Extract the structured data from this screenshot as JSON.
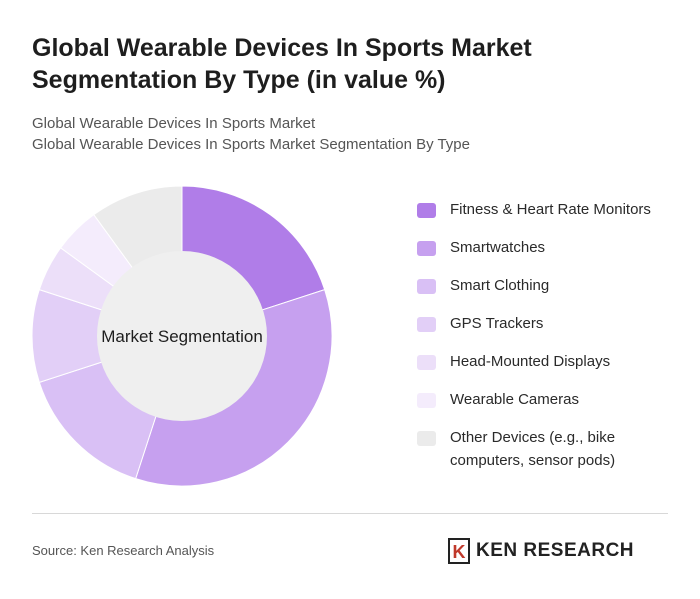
{
  "header": {
    "title": "Global Wearable Devices In Sports Market Segmentation By Type (in value %)",
    "subtitle_line1": "Global Wearable Devices In Sports Market",
    "subtitle_line2": "Global Wearable Devices In Sports Market Segmentation By Type"
  },
  "chart_data": {
    "type": "pie",
    "variant": "donut",
    "center_label": "Market Segmentation",
    "categories": [
      "Fitness & Heart Rate Monitors",
      "Smartwatches",
      "Smart Clothing",
      "GPS Trackers",
      "Head-Mounted Displays",
      "Wearable Cameras",
      "Other Devices (e.g., bike computers, sensor pods)"
    ],
    "values": [
      20,
      35,
      15,
      10,
      5,
      5,
      10
    ],
    "colors": [
      "#b07de8",
      "#c6a0ef",
      "#d9c0f5",
      "#e2cff7",
      "#ecdff9",
      "#f4ecfc",
      "#ebebeb"
    ],
    "legend_position": "right"
  },
  "footer": {
    "source": "Source: Ken Research Analysis",
    "logo_text": "KEN RESEARCH",
    "logo_letter": "K"
  }
}
